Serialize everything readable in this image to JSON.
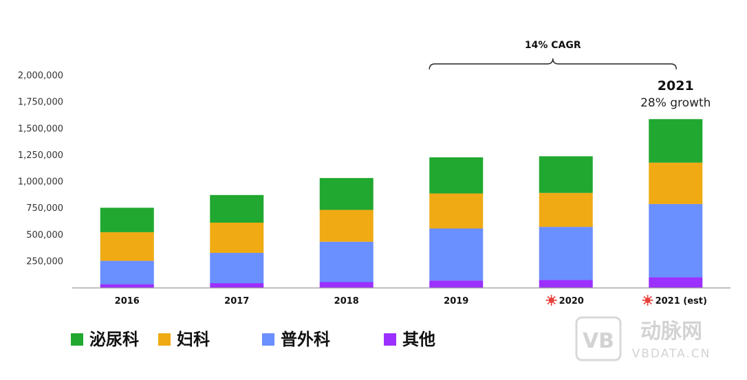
{
  "chart_data": {
    "type": "bar",
    "stacked": true,
    "categories": [
      "2016",
      "2017",
      "2018",
      "2019",
      "2020",
      "2021 (est)"
    ],
    "category_marker_icon": "virus-icon",
    "category_markers": [
      false,
      false,
      false,
      false,
      true,
      true
    ],
    "series": [
      {
        "name": "其他",
        "color": "#9b30ff",
        "values": [
          35000,
          45000,
          55000,
          70000,
          75000,
          100000
        ]
      },
      {
        "name": "普外科",
        "color": "#6a8fff",
        "values": [
          220000,
          285000,
          380000,
          490000,
          500000,
          690000
        ]
      },
      {
        "name": "妇科",
        "color": "#efaa14",
        "values": [
          270000,
          285000,
          300000,
          330000,
          320000,
          390000
        ]
      },
      {
        "name": "泌尿科",
        "color": "#21a830",
        "values": [
          230000,
          260000,
          300000,
          340000,
          345000,
          410000
        ]
      }
    ],
    "yticks": [
      250000,
      500000,
      750000,
      1000000,
      1250000,
      1500000,
      1750000,
      2000000
    ],
    "ytick_labels": [
      "250,000",
      "500,000",
      "750,000",
      "1,000,000",
      "1,250,000",
      "1,500,000",
      "1,750,000",
      "2,000,000"
    ],
    "ylim": [
      0,
      2000000
    ],
    "grid": false,
    "legend_position": "bottom-left",
    "legend_order": [
      "泌尿科",
      "妇科",
      "普外科",
      "其他"
    ],
    "annotations": {
      "cagr": {
        "label": "14% CAGR",
        "from": "2019",
        "to": "2021 (est)"
      },
      "highlight": {
        "category": "2021 (est)",
        "title": "2021",
        "subtitle": "28% growth"
      }
    }
  },
  "watermark": {
    "logo_text": "VB",
    "brand": "动脉网",
    "domain": "VBDATA.CN"
  }
}
